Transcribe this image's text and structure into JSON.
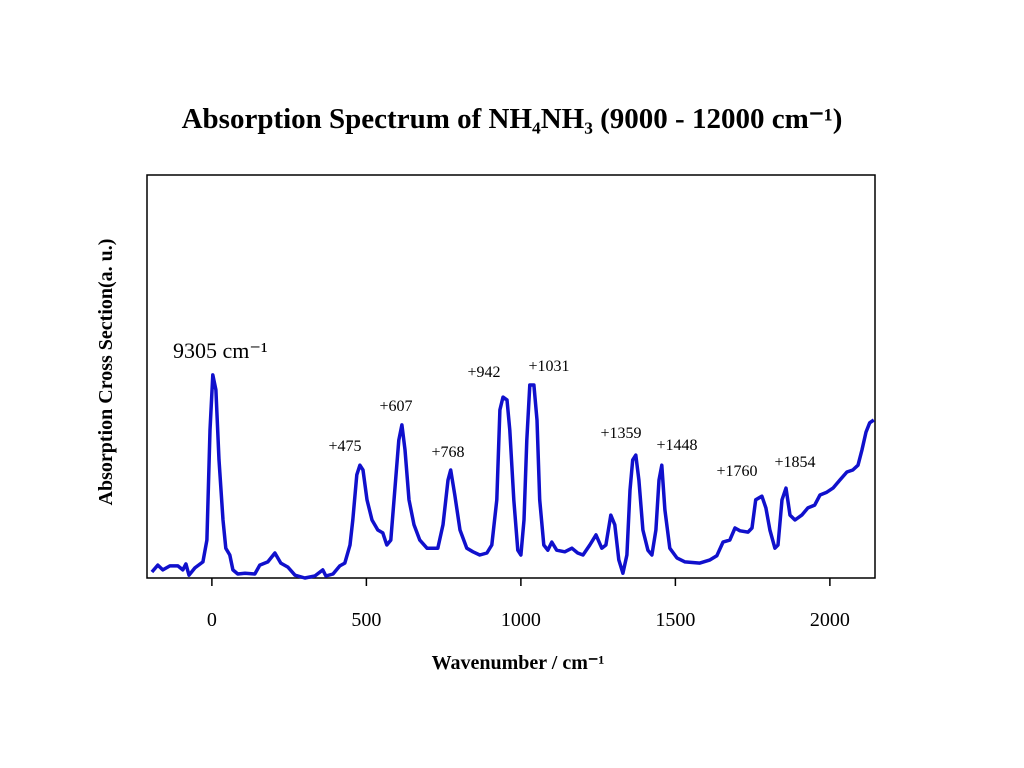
{
  "chart_data": {
    "type": "line",
    "title": "Absorption Spectrum of NH₄NH₃ (9000 - 12000 cm⁻¹)",
    "x_label": "Wavenumber / cm⁻¹",
    "y_label": "Absorption Cross Section(a. u.)",
    "color": "#1010cc",
    "xlim": [
      -210,
      2146
    ],
    "xticks": [
      0,
      500,
      1000,
      1500,
      2000
    ],
    "ylim": [
      0,
      100
    ],
    "annotations": [
      "9305 cm⁻¹",
      "+475",
      "+607",
      "+768",
      "+942",
      "+1031",
      "+1359",
      "+1448",
      "+1760",
      "+1854"
    ],
    "x": [
      -194,
      -175,
      -159,
      -136,
      -110,
      -94,
      -84,
      -74,
      -55,
      -29,
      -16,
      -6,
      3,
      13,
      23,
      36,
      45,
      58,
      68,
      84,
      107,
      139,
      155,
      181,
      204,
      223,
      246,
      269,
      301,
      333,
      359,
      369,
      392,
      414,
      430,
      447,
      456,
      469,
      479,
      489,
      502,
      518,
      537,
      553,
      566,
      579,
      592,
      605,
      615,
      625,
      638,
      654,
      673,
      696,
      715,
      731,
      748,
      764,
      773,
      786,
      803,
      825,
      845,
      867,
      890,
      906,
      922,
      932,
      942,
      955,
      964,
      977,
      990,
      1000,
      1010,
      1019,
      1029,
      1042,
      1052,
      1061,
      1074,
      1087,
      1100,
      1116,
      1142,
      1165,
      1184,
      1201,
      1223,
      1243,
      1262,
      1275,
      1291,
      1304,
      1317,
      1330,
      1343,
      1353,
      1362,
      1372,
      1382,
      1395,
      1411,
      1424,
      1437,
      1447,
      1456,
      1466,
      1482,
      1505,
      1531,
      1579,
      1612,
      1634,
      1654,
      1676,
      1693,
      1709,
      1735,
      1748,
      1760,
      1780,
      1793,
      1806,
      1822,
      1832,
      1845,
      1858,
      1871,
      1887,
      1909,
      1929,
      1951,
      1968,
      1990,
      2010,
      2032,
      2055,
      2074,
      2091,
      2104,
      2117,
      2129,
      2142
    ],
    "values": [
      1.5,
      3.2,
      2,
      3,
      3,
      2,
      3.5,
      0.7,
      2.5,
      4,
      9.4,
      36.7,
      50.4,
      46.7,
      29.3,
      14.4,
      7.4,
      5.7,
      2,
      1,
      1.2,
      1,
      3.2,
      4,
      6.2,
      3.7,
      2.7,
      0.7,
      0,
      0.5,
      2,
      0.5,
      1,
      3,
      3.7,
      8.2,
      14.4,
      25.6,
      28,
      26.8,
      19.4,
      14.4,
      11.9,
      11.2,
      8.2,
      9.4,
      21.8,
      34.2,
      38,
      31.8,
      19.4,
      13.2,
      9.4,
      7.4,
      7.4,
      7.4,
      13.2,
      24.3,
      26.8,
      20.6,
      11.9,
      7.4,
      6.5,
      5.7,
      6.2,
      8.2,
      19.4,
      41.7,
      44.9,
      44.2,
      36.7,
      19.4,
      6.9,
      5.7,
      14.4,
      34.2,
      47.9,
      47.9,
      39.2,
      19.4,
      8.2,
      6.9,
      8.9,
      6.9,
      6.5,
      7.4,
      6.2,
      5.7,
      8.2,
      10.7,
      7.4,
      8.2,
      15.6,
      13.2,
      4.5,
      1.2,
      5.7,
      21.8,
      29.3,
      30.5,
      24.3,
      11.9,
      6.9,
      5.7,
      11.9,
      24.3,
      28,
      16.9,
      7.4,
      5,
      4,
      3.7,
      4.5,
      5.5,
      8.9,
      9.4,
      12.4,
      11.7,
      11.4,
      12.4,
      19.4,
      20.3,
      17.4,
      11.9,
      7.4,
      8.2,
      19.4,
      22.3,
      15.6,
      14.4,
      15.6,
      17.4,
      18.1,
      20.6,
      21.3,
      22.3,
      24.3,
      26.3,
      26.8,
      28,
      31.8,
      36.2,
      38.5,
      39.2
    ]
  }
}
